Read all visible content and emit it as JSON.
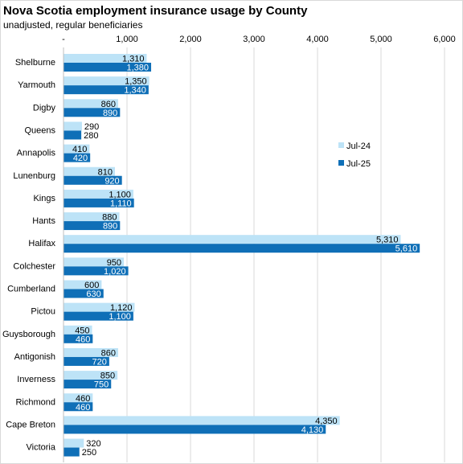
{
  "chart_data": {
    "type": "bar",
    "orientation": "horizontal",
    "title": "Nova Scotia employment insurance usage by County",
    "subtitle": "unadjusted, regular beneficiaries",
    "xlabel": "",
    "ylabel": "",
    "xlim": [
      0,
      6000
    ],
    "x_ticks": [
      "-",
      "1,000",
      "2,000",
      "3,000",
      "4,000",
      "5,000",
      "6,000"
    ],
    "x_axis_position": "top",
    "grid": true,
    "legend_position": "right",
    "categories": [
      "Shelburne",
      "Yarmouth",
      "Digby",
      "Queens",
      "Annapolis",
      "Lunenburg",
      "Kings",
      "Hants",
      "Halifax",
      "Colchester",
      "Cumberland",
      "Pictou",
      "Guysborough",
      "Antigonish",
      "Inverness",
      "Richmond",
      "Cape Breton",
      "Victoria"
    ],
    "series": [
      {
        "name": "Jul-24",
        "color": "#bde3f7",
        "values": [
          1310,
          1350,
          860,
          290,
          410,
          810,
          1100,
          880,
          5310,
          950,
          600,
          1120,
          450,
          860,
          850,
          460,
          4350,
          320
        ],
        "labels": [
          "1,310",
          "1,350",
          "860",
          "290",
          "410",
          "810",
          "1,100",
          "880",
          "5,310",
          "950",
          "600",
          "1,120",
          "450",
          "860",
          "850",
          "460",
          "4,350",
          "320"
        ]
      },
      {
        "name": "Jul-25",
        "color": "#0f6fb7",
        "values": [
          1380,
          1340,
          890,
          280,
          420,
          920,
          1110,
          890,
          5610,
          1020,
          630,
          1100,
          460,
          720,
          750,
          460,
          4130,
          250
        ],
        "labels": [
          "1,380",
          "1,340",
          "890",
          "280",
          "420",
          "920",
          "1,110",
          "890",
          "5,610",
          "1,020",
          "630",
          "1,100",
          "460",
          "720",
          "750",
          "460",
          "4,130",
          "250"
        ]
      }
    ]
  }
}
